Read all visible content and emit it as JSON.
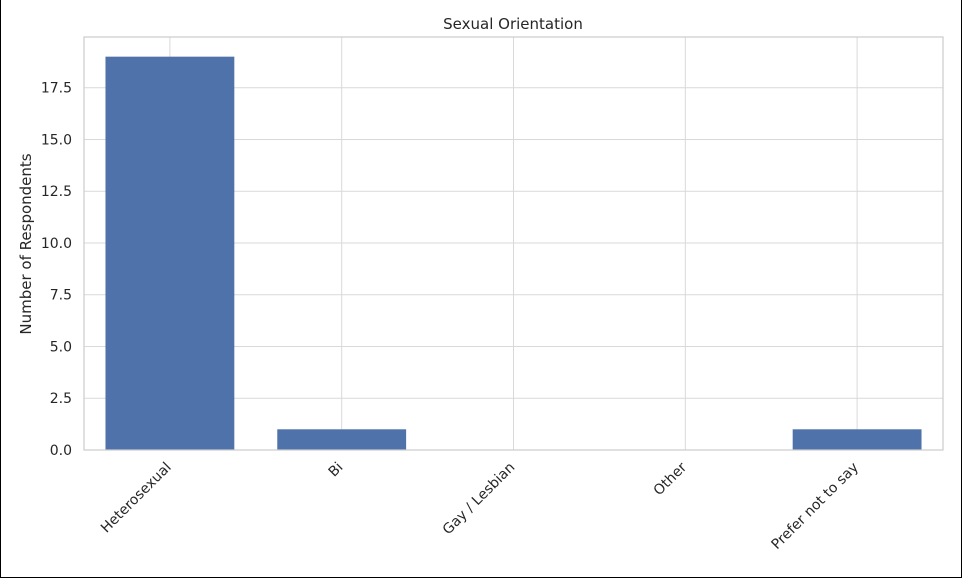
{
  "chart_data": {
    "type": "bar",
    "title": "Sexual Orientation",
    "xlabel": "",
    "ylabel": "Number of Respondents",
    "categories": [
      "Heterosexual",
      "Bi",
      "Gay / Lesbian",
      "Other",
      "Prefer not to say"
    ],
    "values": [
      19,
      1,
      0,
      0,
      1
    ],
    "ylim": [
      0,
      19.95
    ],
    "yticks": [
      "0.0",
      "2.5",
      "5.0",
      "7.5",
      "10.0",
      "12.5",
      "15.0",
      "17.5"
    ],
    "ytick_values": [
      0,
      2.5,
      5,
      7.5,
      10,
      12.5,
      15,
      17.5
    ],
    "grid": true,
    "colors": {
      "bar": "#4f72aa",
      "grid": "#d9d9d9",
      "text": "#262626"
    }
  }
}
